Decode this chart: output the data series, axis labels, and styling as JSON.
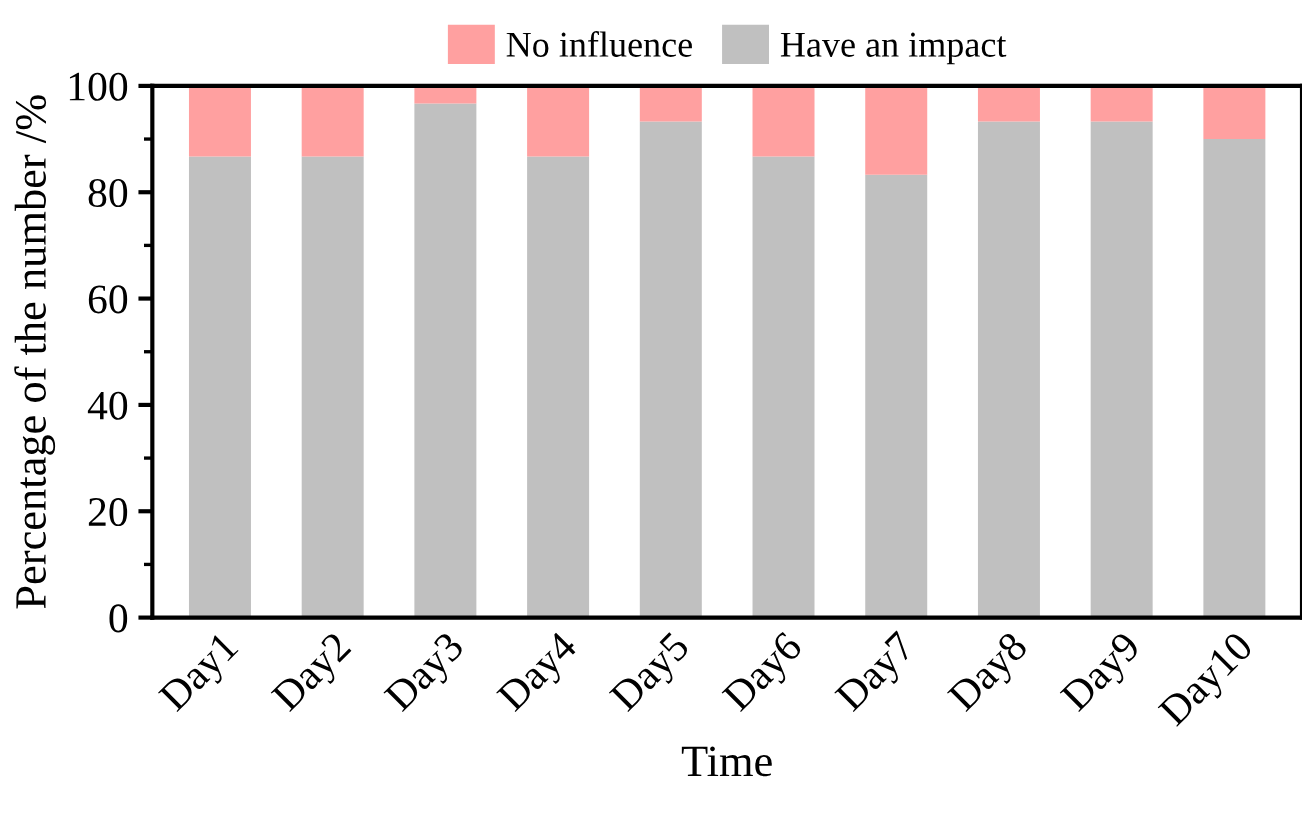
{
  "chart_data": {
    "type": "bar",
    "stacked": true,
    "xlabel": "Time",
    "ylabel": "Percentage of the number /%",
    "categories": [
      "Day1",
      "Day2",
      "Day3",
      "Day4",
      "Day5",
      "Day6",
      "Day7",
      "Day8",
      "Day9",
      "Day10"
    ],
    "series": [
      {
        "name": "Have an impact",
        "color": "#c0c0c0",
        "values": [
          86.7,
          86.7,
          96.7,
          86.7,
          93.3,
          86.7,
          83.3,
          93.3,
          93.3,
          90.0
        ]
      },
      {
        "name": "No influence",
        "color": "#ffa0a0",
        "values": [
          13.3,
          13.3,
          3.3,
          13.3,
          6.7,
          13.3,
          16.7,
          6.7,
          6.7,
          10.0
        ]
      }
    ],
    "ylim": [
      0,
      100
    ],
    "yticks": [
      0,
      20,
      40,
      60,
      80,
      100
    ],
    "grid": false,
    "legend": "top"
  }
}
